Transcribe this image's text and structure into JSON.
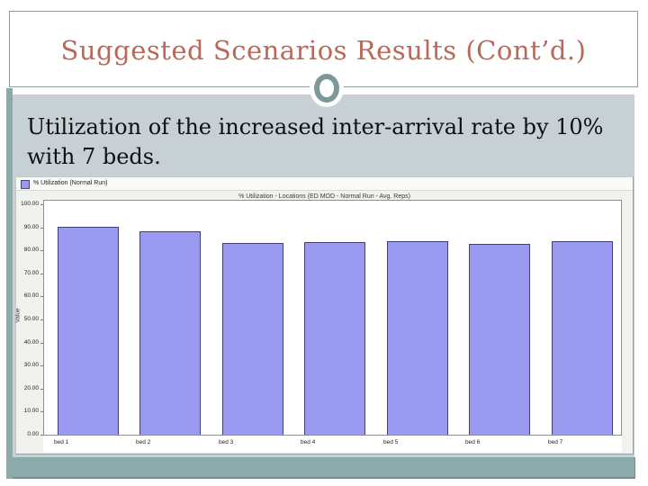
{
  "slide": {
    "title": "Suggested Scenarios Results (Cont’d.)",
    "body_text": "Utilization of the increased inter-arrival rate by 10% with 7 beds."
  },
  "colors": {
    "title_text": "#b8695a",
    "accent_teal": "#8aabaa",
    "content_bg": "#c7d0d4",
    "circle_ring": "#7d9899",
    "bar_fill": "#9a9af0",
    "bar_border": "#3f3f7a",
    "chart_window_bg": "#f1f1ee"
  },
  "chart_data": {
    "type": "bar",
    "title": "% Utilization - Locations (ED MOD - Normal Run - Avg. Reps)",
    "legend": {
      "label": "% Utilization (Normal Run)",
      "position": "top-left",
      "swatch_color": "#9a9af0"
    },
    "categories": [
      "bed 1",
      "bed 2",
      "bed 3",
      "bed 4",
      "bed 5",
      "bed 6",
      "bed 7"
    ],
    "values": [
      89.8,
      87.9,
      82.9,
      83.3,
      83.6,
      82.5,
      83.6
    ],
    "xlabel": "",
    "ylabel": "Value",
    "ylim": [
      0,
      100
    ],
    "ytick_step": 10,
    "ytick_labels": [
      "0.00",
      "10.00",
      "20.00",
      "30.00",
      "40.00",
      "50.00",
      "60.00",
      "70.00",
      "80.00",
      "90.00",
      "100.00"
    ],
    "grid": false
  }
}
